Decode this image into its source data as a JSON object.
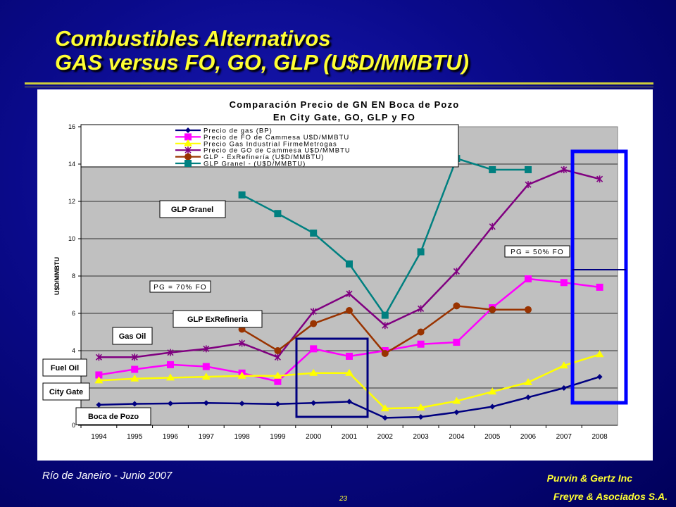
{
  "slide": {
    "title_line1": "Combustibles Alternativos",
    "title_line2": "GAS versus FO, GO, GLP (U$D/MMBTU)",
    "footer_left": "Río de Janeiro - Junio 2007",
    "footer_right_line1": "Purvin & Gertz Inc",
    "footer_right_line2": "Freyre & Asociados S.A.",
    "page_number": "23",
    "colors": {
      "title": "#ffff33",
      "background": "#0a0a8a"
    }
  },
  "chart_data": {
    "type": "line",
    "title_line1": "Comparación Precio de GN EN Boca de Pozo",
    "title_line2": "En City Gate, GO, GLP y FO",
    "ylabel": "U$D/MMBTU",
    "xlabel": "",
    "ylim": [
      0,
      16
    ],
    "yticks": [
      "0",
      "2",
      "4",
      "6",
      "8",
      "10",
      "12",
      "14",
      "16"
    ],
    "categories": [
      "1994",
      "1995",
      "1996",
      "1997",
      "1998",
      "1999",
      "2000",
      "2001",
      "2002",
      "2003",
      "2004",
      "2005",
      "2006",
      "2007",
      "2008"
    ],
    "grid": "horizontal",
    "legend_placement": "top-left",
    "series": [
      {
        "name": "Precio de gas (BP)",
        "color": "#000080",
        "marker": "diamond",
        "values": [
          1.1,
          1.15,
          1.17,
          1.2,
          1.17,
          1.14,
          1.2,
          1.27,
          0.4,
          0.45,
          0.7,
          1.0,
          1.5,
          2.0,
          2.6
        ]
      },
      {
        "name": "Precio de FO de Cammesa U$D/MMBTU",
        "color": "#ff00ff",
        "marker": "square",
        "values": [
          2.7,
          3.0,
          3.25,
          3.15,
          2.8,
          2.35,
          4.1,
          3.7,
          4.0,
          4.35,
          4.45,
          6.3,
          7.85,
          7.65,
          7.4
        ]
      },
      {
        "name": "Precio Gas Industrial FirmeMetrogas",
        "color": "#ffff00",
        "marker": "triangle",
        "values": [
          2.4,
          2.5,
          2.55,
          2.6,
          2.65,
          2.65,
          2.8,
          2.8,
          0.9,
          0.95,
          1.3,
          1.8,
          2.3,
          3.2,
          3.8
        ]
      },
      {
        "name": "Precio de GO de Cammesa U$D/MMBTU",
        "color": "#800080",
        "marker": "star",
        "values": [
          3.65,
          3.65,
          3.9,
          4.1,
          4.4,
          3.65,
          6.1,
          7.05,
          5.35,
          6.25,
          8.25,
          10.65,
          12.9,
          13.7,
          13.2
        ]
      },
      {
        "name": "GLP - ExRefinería (U$D/MMBTU)",
        "color": "#993300",
        "marker": "circle",
        "values": [
          null,
          null,
          null,
          null,
          5.15,
          4.0,
          5.45,
          6.15,
          3.85,
          5.0,
          6.4,
          6.2,
          6.2,
          null,
          null
        ]
      },
      {
        "name": "GLP Granel - (U$D/MMBTU)",
        "color": "#008080",
        "marker": "square",
        "values": [
          null,
          null,
          null,
          null,
          12.35,
          11.35,
          10.3,
          8.65,
          5.9,
          9.3,
          14.3,
          13.7,
          13.7,
          null,
          null
        ]
      }
    ],
    "annotations": {
      "glp_granel": "GLP Granel",
      "glp_exrefineria": "GLP ExRefineria",
      "gas_oil": "Gas Oil",
      "fuel_oil": "Fuel Oil",
      "city_gate": "City Gate",
      "boca_de_pozo": "Boca de Pozo",
      "pg_70": "PG = 70% FO",
      "pg_50": "PG = 50% FO"
    }
  }
}
